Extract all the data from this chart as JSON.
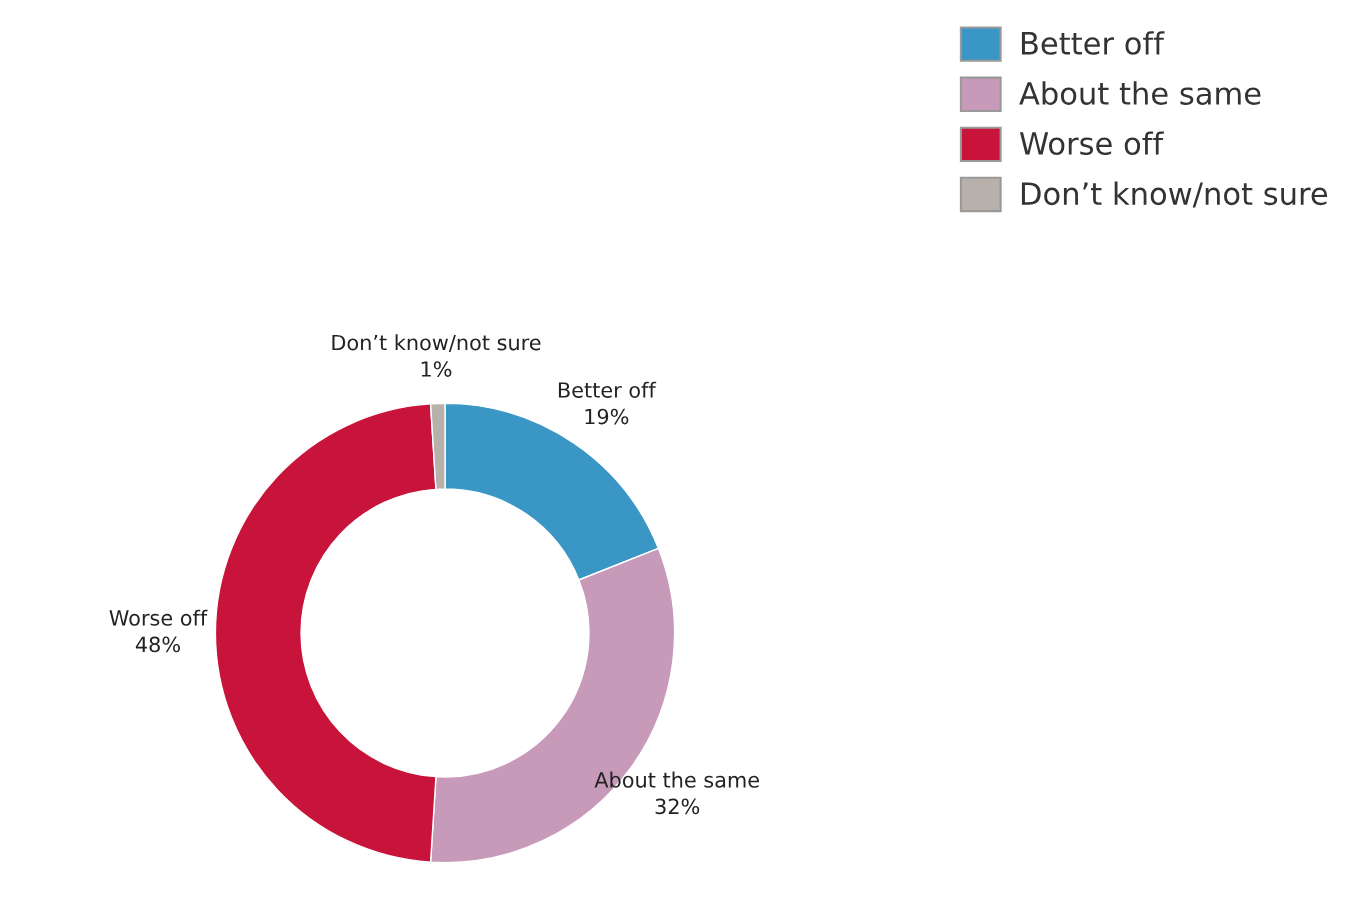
{
  "chart_data": {
    "type": "donut",
    "categories": [
      "Better off",
      "About the same",
      "Worse off",
      "Don’t know/not sure"
    ],
    "values": [
      19,
      32,
      48,
      1
    ],
    "colors": [
      "#3a96c4",
      "#c89aba",
      "#c8143a",
      "#b8b0aa"
    ],
    "value_labels": [
      "19%",
      "32%",
      "48%",
      "1%"
    ],
    "legend": "top right"
  }
}
